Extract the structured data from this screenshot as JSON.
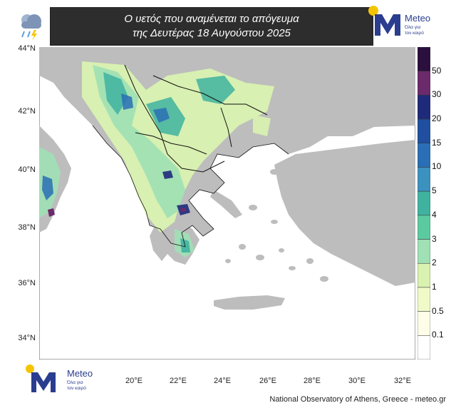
{
  "header": {
    "title_line1": "Ο υετός που αναμένεται το απόγευμα",
    "title_line2": "της Δευτέρας 18 Αυγούστου 2025"
  },
  "logo": {
    "name": "Meteo",
    "tagline_line1": "Όλα για",
    "tagline_line2": "τον καιρό",
    "brand_color": "#2a3d8f",
    "accent_color": "#f5c400"
  },
  "map": {
    "lat_labels": [
      "44°N",
      "42°N",
      "40°N",
      "38°N",
      "36°N",
      "34°N"
    ],
    "lon_labels": [
      "20°E",
      "22°E",
      "24°E",
      "26°E",
      "28°E",
      "30°E",
      "32°E"
    ],
    "land_color": "#bdbdbd",
    "sea_color": "#ffffff"
  },
  "legend": {
    "labels": [
      "50",
      "30",
      "20",
      "15",
      "10",
      "5",
      "4",
      "3",
      "2",
      "1",
      "0.5",
      "0.1"
    ],
    "colors": [
      "#2b0f3e",
      "#6b2a6b",
      "#1f2a7a",
      "#1f4f9e",
      "#2a6fb5",
      "#3c92bf",
      "#3fb3a0",
      "#5ccaa0",
      "#9fe0b5",
      "#d9f2b0",
      "#f0f9c8",
      "#fdfde8",
      "#ffffff"
    ]
  },
  "footer": {
    "credit": "National Observatory of Athens, Greece - meteo.gr"
  }
}
